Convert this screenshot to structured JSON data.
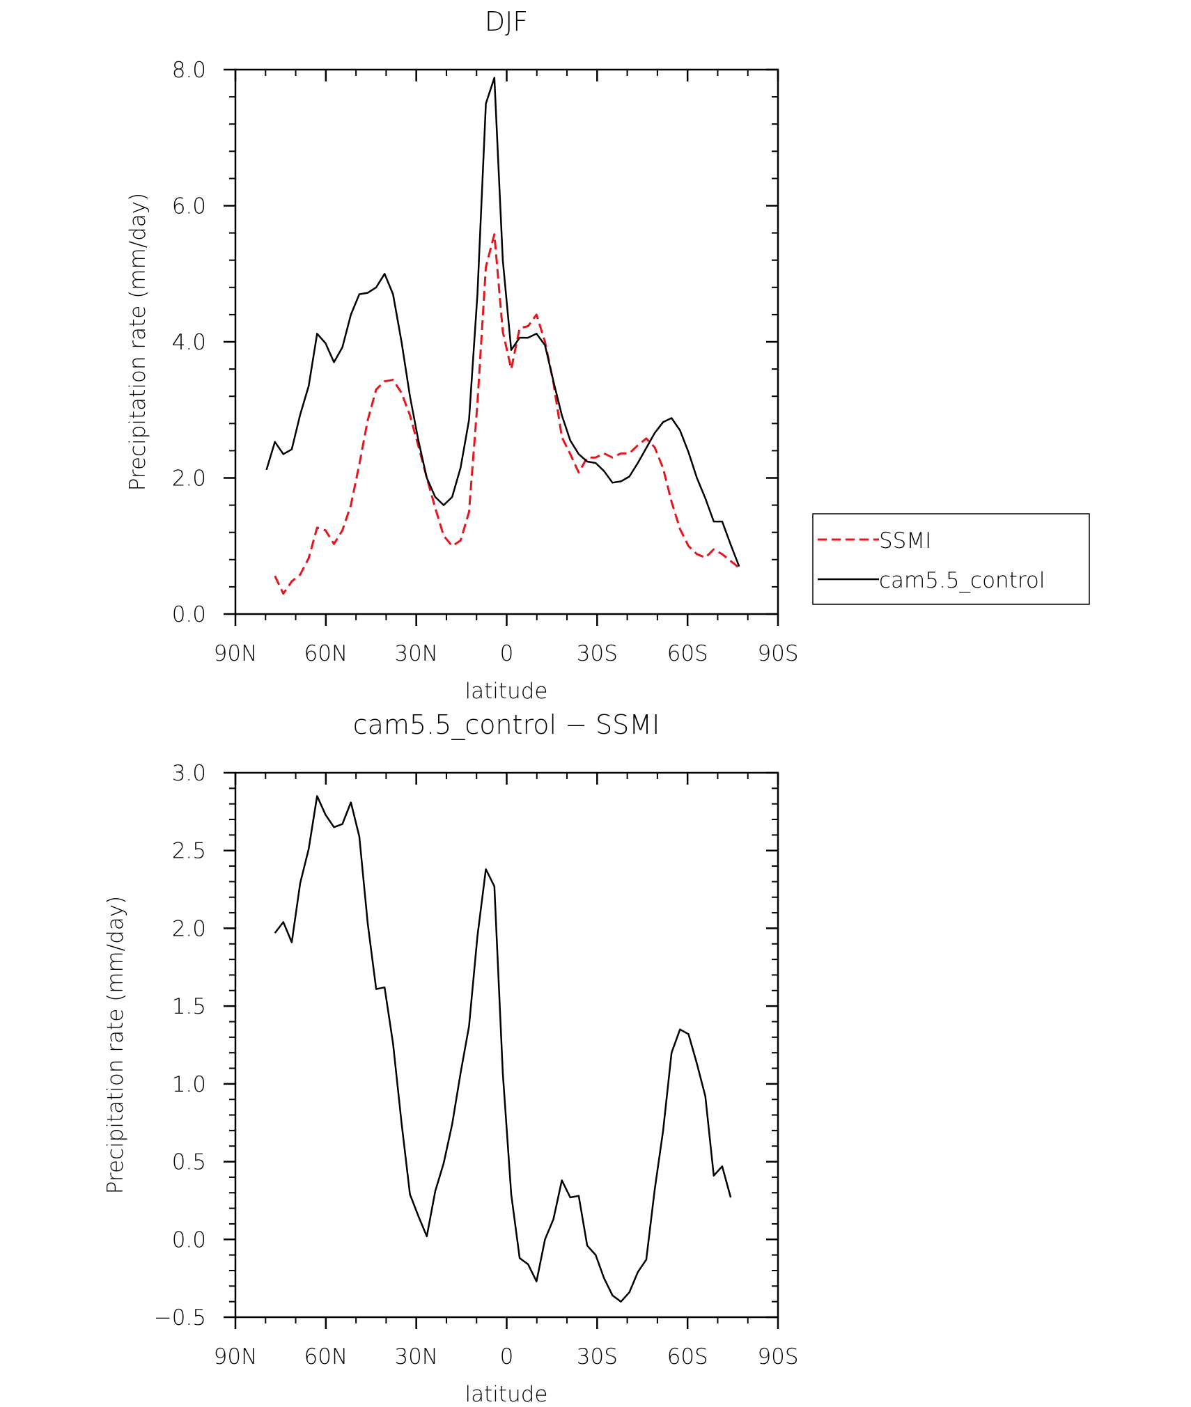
{
  "chart_data": [
    {
      "type": "line",
      "title": "DJF",
      "xlabel": "latitude",
      "ylabel": "Precipitation rate (mm/day)",
      "xlim": [
        90,
        -90
      ],
      "ylim": [
        0,
        8
      ],
      "xticks": [
        90,
        60,
        30,
        0,
        -30,
        -60,
        -90
      ],
      "xtick_labels": [
        "90N",
        "60N",
        "30N",
        "0",
        "30S",
        "60S",
        "90S"
      ],
      "yticks": [
        0,
        2,
        4,
        6,
        8
      ],
      "ytick_labels": [
        "0.0",
        "2.0",
        "4.0",
        "6.0",
        "8.0"
      ],
      "legend": {
        "position": "right",
        "entries": [
          {
            "label": "SSMI",
            "color": "#e8141c",
            "dash": "dashed"
          },
          {
            "label": "cam5.5_control",
            "color": "#000000",
            "dash": "solid"
          }
        ]
      },
      "series": [
        {
          "name": "SSMI",
          "color": "#e8141c",
          "dash": "dashed",
          "x": [
            76.9,
            74.1,
            71.3,
            68.5,
            65.7,
            62.9,
            60.1,
            57.3,
            54.5,
            51.7,
            48.9,
            46.1,
            43.3,
            40.5,
            37.7,
            34.9,
            32.1,
            29.3,
            26.5,
            23.7,
            20.9,
            18.1,
            15.3,
            12.5,
            9.7,
            6.9,
            4.1,
            1.3,
            -1.5,
            -4.3,
            -7.1,
            -9.9,
            -12.7,
            -15.5,
            -18.3,
            -21.1,
            -23.9,
            -26.7,
            -29.5,
            -32.3,
            -35.1,
            -37.9,
            -40.7,
            -43.5,
            -46.3,
            -49.1,
            -51.9,
            -54.7,
            -57.5,
            -60.3,
            -63.1,
            -65.9,
            -68.7,
            -71.5,
            -74.3,
            -77.1
          ],
          "y": [
            0.56,
            0.3,
            0.48,
            0.58,
            0.82,
            1.27,
            1.23,
            1.03,
            1.23,
            1.6,
            2.2,
            2.85,
            3.3,
            3.42,
            3.44,
            3.25,
            2.92,
            2.47,
            2.0,
            1.56,
            1.15,
            1.0,
            1.08,
            1.5,
            3.1,
            5.1,
            5.58,
            4.15,
            3.6,
            4.2,
            4.23,
            4.4,
            4.0,
            3.4,
            2.6,
            2.35,
            2.08,
            2.3,
            2.3,
            2.36,
            2.3,
            2.36,
            2.36,
            2.48,
            2.58,
            2.45,
            2.14,
            1.65,
            1.25,
            1.0,
            0.88,
            0.83,
            0.95,
            0.88,
            0.78,
            0.68
          ]
        },
        {
          "name": "cam5.5_control",
          "color": "#000000",
          "dash": "solid",
          "x": [
            79.7,
            76.9,
            74.1,
            71.3,
            68.5,
            65.7,
            62.9,
            60.1,
            57.3,
            54.5,
            51.7,
            48.9,
            46.1,
            43.3,
            40.5,
            37.7,
            34.9,
            32.1,
            29.3,
            26.5,
            23.7,
            20.9,
            18.1,
            15.3,
            12.5,
            9.7,
            6.9,
            4.1,
            1.3,
            -1.5,
            -4.3,
            -7.1,
            -9.9,
            -12.7,
            -15.5,
            -18.3,
            -21.1,
            -23.9,
            -26.7,
            -29.5,
            -32.3,
            -35.1,
            -37.9,
            -40.7,
            -43.5,
            -46.3,
            -49.1,
            -51.9,
            -54.7,
            -57.5,
            -60.3,
            -63.1,
            -65.9,
            -68.7,
            -71.5,
            -74.3,
            -77.1
          ],
          "y": [
            2.12,
            2.53,
            2.35,
            2.42,
            2.93,
            3.35,
            4.12,
            3.98,
            3.7,
            3.92,
            4.4,
            4.7,
            4.72,
            4.8,
            5.0,
            4.7,
            4.0,
            3.2,
            2.55,
            2.0,
            1.72,
            1.6,
            1.72,
            2.15,
            2.85,
            4.7,
            7.5,
            7.88,
            5.2,
            3.88,
            4.06,
            4.06,
            4.12,
            3.95,
            3.42,
            2.92,
            2.55,
            2.35,
            2.24,
            2.22,
            2.1,
            1.93,
            1.95,
            2.02,
            2.22,
            2.44,
            2.66,
            2.82,
            2.88,
            2.7,
            2.38,
            2.0,
            1.7,
            1.36,
            1.36,
            1.02,
            0.7
          ]
        }
      ]
    },
    {
      "type": "line",
      "title": "cam5.5_control − SSMI",
      "xlabel": "latitude",
      "ylabel": "Precipitation rate (mm/day)",
      "xlim": [
        90,
        -90
      ],
      "ylim": [
        -0.5,
        3.0
      ],
      "xticks": [
        90,
        60,
        30,
        0,
        -30,
        -60,
        -90
      ],
      "xtick_labels": [
        "90N",
        "60N",
        "30N",
        "0",
        "30S",
        "60S",
        "90S"
      ],
      "yticks": [
        -0.5,
        0,
        0.5,
        1,
        1.5,
        2,
        2.5,
        3
      ],
      "ytick_labels": [
        "−0.5",
        "0.0",
        "0.5",
        "1.0",
        "1.5",
        "2.0",
        "2.5",
        "3.0"
      ],
      "series": [
        {
          "color": "#000000",
          "dash": "solid",
          "x": [
            76.9,
            74.1,
            71.3,
            68.5,
            65.7,
            62.9,
            60.1,
            57.3,
            54.5,
            51.7,
            48.9,
            46.1,
            43.3,
            40.5,
            37.7,
            34.9,
            32.1,
            29.3,
            26.5,
            23.7,
            20.9,
            18.1,
            15.3,
            12.5,
            9.7,
            6.9,
            4.1,
            1.3,
            -1.5,
            -4.3,
            -7.1,
            -9.9,
            -12.7,
            -15.5,
            -18.3,
            -21.1,
            -23.9,
            -26.7,
            -29.5,
            -32.3,
            -35.1,
            -37.9,
            -40.7,
            -43.5,
            -46.3,
            -49.1,
            -51.9,
            -54.7,
            -57.5,
            -60.3,
            -63.1,
            -65.9,
            -68.7,
            -71.5,
            -74.3
          ],
          "y": [
            1.97,
            2.04,
            1.91,
            2.29,
            2.51,
            2.85,
            2.73,
            2.65,
            2.67,
            2.81,
            2.59,
            2.03,
            1.61,
            1.62,
            1.26,
            0.75,
            0.29,
            0.15,
            0.02,
            0.31,
            0.49,
            0.74,
            1.07,
            1.37,
            1.95,
            2.38,
            2.27,
            1.07,
            0.29,
            -0.12,
            -0.16,
            -0.27,
            0.0,
            0.13,
            0.38,
            0.27,
            0.28,
            -0.04,
            -0.1,
            -0.25,
            -0.36,
            -0.4,
            -0.34,
            -0.21,
            -0.13,
            0.32,
            0.7,
            1.2,
            1.35,
            1.32,
            1.13,
            0.92,
            0.41,
            0.47,
            0.27
          ]
        }
      ]
    }
  ]
}
